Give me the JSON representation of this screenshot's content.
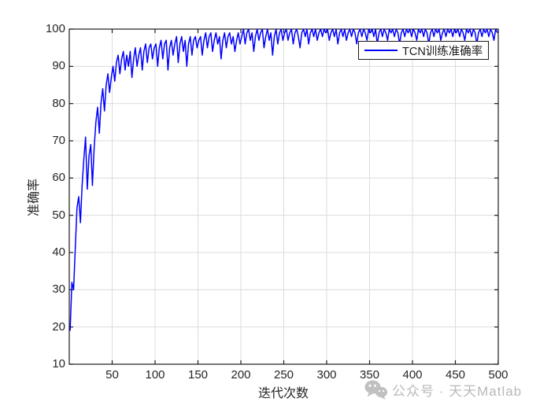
{
  "watermark": {
    "text": "公众号 · 天天Matlab",
    "icon": "wechat-icon",
    "color": "#b9b9b9"
  },
  "chart_data": {
    "type": "line",
    "title": "",
    "xlabel": "迭代次数",
    "ylabel": "准确率",
    "xlim": [
      0,
      500
    ],
    "ylim": [
      10,
      100
    ],
    "x_ticks": [
      50,
      100,
      150,
      200,
      250,
      300,
      350,
      400,
      450,
      500
    ],
    "y_ticks": [
      10,
      20,
      30,
      40,
      50,
      60,
      70,
      80,
      90,
      100
    ],
    "grid": true,
    "grid_color": "#dcdcdc",
    "axis_color": "#1a1a1a",
    "legend_position": "northeast",
    "series": [
      {
        "name": "TCN训练准确率",
        "color": "#0000ff",
        "x_start": 1,
        "x_step": 2,
        "values": [
          19,
          32,
          30,
          41,
          52,
          55,
          48,
          58,
          65,
          71,
          57,
          66,
          69,
          58,
          68,
          75,
          79,
          72,
          80,
          84,
          78,
          85,
          88,
          83,
          87,
          90,
          86,
          91,
          93,
          88,
          92,
          94,
          89,
          93,
          90,
          94,
          87,
          92,
          95,
          90,
          93,
          95,
          89,
          94,
          96,
          91,
          95,
          96,
          92,
          95,
          96,
          90,
          95,
          97,
          92,
          96,
          97,
          89,
          95,
          97,
          93,
          96,
          98,
          91,
          96,
          98,
          94,
          97,
          90,
          96,
          98,
          93,
          97,
          98,
          95,
          97,
          98,
          93,
          97,
          99,
          95,
          98,
          99,
          94,
          97,
          99,
          96,
          98,
          92,
          97,
          99,
          95,
          98,
          99,
          96,
          98,
          94,
          97,
          99,
          96,
          98,
          100,
          96,
          99,
          100,
          97,
          99,
          94,
          98,
          100,
          97,
          99,
          100,
          95,
          98,
          100,
          97,
          99,
          93,
          98,
          100,
          96,
          99,
          100,
          97,
          99,
          100,
          97,
          99,
          100,
          96,
          99,
          100,
          98,
          95,
          99,
          100,
          98,
          100,
          96,
          99,
          100,
          98,
          100,
          97,
          99,
          100,
          98,
          100,
          99,
          100,
          97,
          99,
          100,
          98,
          100,
          96,
          99,
          100,
          98,
          100,
          97,
          99,
          100,
          98,
          100,
          99,
          96,
          99,
          100,
          98,
          100,
          99,
          97,
          100,
          99,
          100,
          98,
          100,
          96,
          99,
          100,
          98,
          100,
          99,
          97,
          100,
          99,
          100,
          98,
          100,
          99,
          96,
          99,
          100,
          98,
          100,
          99,
          100,
          98,
          100,
          99,
          97,
          100,
          99,
          100,
          98,
          100,
          99,
          96,
          99,
          100,
          98,
          100,
          99,
          100,
          97,
          99,
          100,
          98,
          100,
          99,
          100,
          98,
          100,
          99,
          100,
          98,
          100,
          99,
          97,
          100,
          99,
          100,
          98,
          100,
          99,
          96,
          99,
          100,
          98,
          100,
          99,
          100,
          98,
          100,
          99,
          97,
          100,
          99
        ]
      }
    ]
  }
}
